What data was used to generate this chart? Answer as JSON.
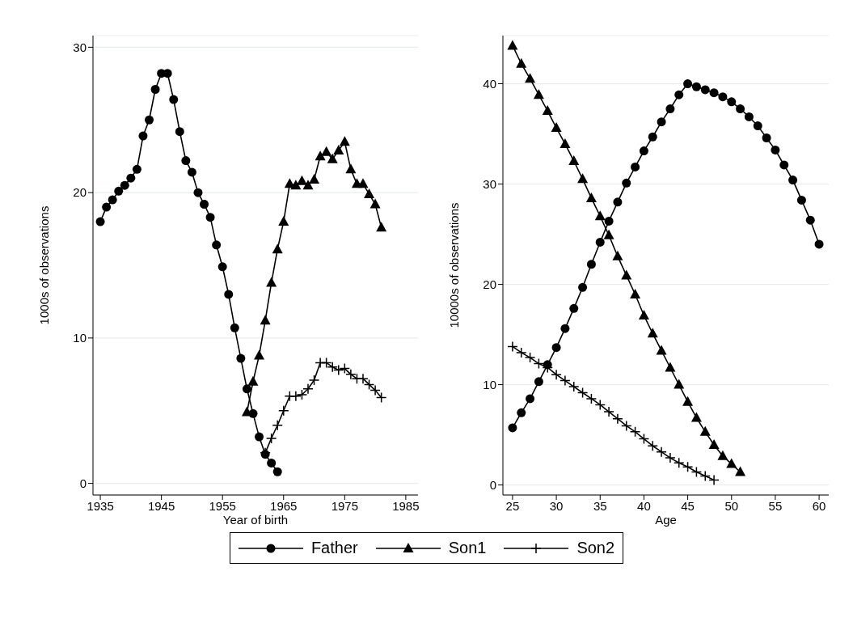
{
  "chart_data": [
    {
      "type": "line",
      "xlabel": "Year of birth",
      "ylabel": "1000s of observations",
      "xlim": [
        1933.8,
        1987
      ],
      "ylim": [
        -0.8,
        30.8
      ],
      "xticks": [
        1935,
        1945,
        1955,
        1965,
        1975,
        1985
      ],
      "yticks": [
        0,
        10,
        20,
        30
      ],
      "grid": "y",
      "legend": "bottom",
      "series": [
        {
          "name": "Father",
          "color": "#000000",
          "marker": "circle",
          "x": [
            1935,
            1936,
            1937,
            1938,
            1939,
            1940,
            1941,
            1942,
            1943,
            1944,
            1945,
            1946,
            1947,
            1948,
            1949,
            1950,
            1951,
            1952,
            1953,
            1954,
            1955,
            1956,
            1957,
            1958,
            1959,
            1960,
            1961,
            1962,
            1963,
            1964
          ],
          "values": [
            18.0,
            19.0,
            19.5,
            20.1,
            20.5,
            21.0,
            21.6,
            23.9,
            25.0,
            27.1,
            28.2,
            28.2,
            26.4,
            24.2,
            22.2,
            21.4,
            20.0,
            19.2,
            18.3,
            16.4,
            14.9,
            13.0,
            10.7,
            8.6,
            6.5,
            4.8,
            3.2,
            2.0,
            1.4,
            0.8
          ]
        },
        {
          "name": "Son1",
          "color": "#000000",
          "marker": "triangle",
          "x": [
            1959,
            1960,
            1961,
            1962,
            1963,
            1964,
            1965,
            1966,
            1967,
            1968,
            1969,
            1970,
            1971,
            1972,
            1973,
            1974,
            1975,
            1976,
            1977,
            1978,
            1979,
            1980,
            1981
          ],
          "values": [
            4.9,
            7.0,
            8.8,
            11.2,
            13.8,
            16.1,
            18.0,
            20.6,
            20.5,
            20.8,
            20.5,
            20.9,
            22.5,
            22.8,
            22.3,
            22.9,
            23.5,
            21.6,
            20.6,
            20.6,
            19.9,
            19.2,
            17.6
          ]
        },
        {
          "name": "Son2",
          "color": "#000000",
          "marker": "cross",
          "x": [
            1962,
            1963,
            1964,
            1965,
            1966,
            1967,
            1968,
            1969,
            1970,
            1971,
            1972,
            1973,
            1974,
            1975,
            1976,
            1977,
            1978,
            1979,
            1980,
            1981
          ],
          "values": [
            2.1,
            3.1,
            4.0,
            5.0,
            6.0,
            6.0,
            6.1,
            6.5,
            7.1,
            8.3,
            8.3,
            8.0,
            7.8,
            7.9,
            7.5,
            7.2,
            7.2,
            6.8,
            6.4,
            5.9
          ]
        }
      ]
    },
    {
      "type": "line",
      "xlabel": "Age",
      "ylabel": "10000s of observations",
      "xlim": [
        23.9,
        61.1
      ],
      "ylim": [
        -1,
        44.8
      ],
      "xticks": [
        25,
        30,
        35,
        40,
        45,
        50,
        55,
        60
      ],
      "yticks": [
        0,
        10,
        20,
        30,
        40
      ],
      "grid": "y",
      "legend": "bottom",
      "series": [
        {
          "name": "Father",
          "color": "#000000",
          "marker": "circle",
          "x": [
            25,
            26,
            27,
            28,
            29,
            30,
            31,
            32,
            33,
            34,
            35,
            36,
            37,
            38,
            39,
            40,
            41,
            42,
            43,
            44,
            45,
            46,
            47,
            48,
            49,
            50,
            51,
            52,
            53,
            54,
            55,
            56,
            57,
            58,
            59,
            60
          ],
          "values": [
            5.7,
            7.2,
            8.6,
            10.3,
            12.0,
            13.7,
            15.6,
            17.6,
            19.7,
            22.0,
            24.2,
            26.3,
            28.2,
            30.1,
            31.7,
            33.3,
            34.7,
            36.2,
            37.5,
            38.9,
            40.0,
            39.7,
            39.4,
            39.1,
            38.7,
            38.2,
            37.5,
            36.7,
            35.8,
            34.6,
            33.4,
            31.9,
            30.4,
            28.4,
            26.4,
            24.0
          ]
        },
        {
          "name": "Son1",
          "color": "#000000",
          "marker": "triangle",
          "x": [
            25,
            26,
            27,
            28,
            29,
            30,
            31,
            32,
            33,
            34,
            35,
            36,
            37,
            38,
            39,
            40,
            41,
            42,
            43,
            44,
            45,
            46,
            47,
            48,
            49,
            50,
            51
          ],
          "values": [
            43.8,
            42.0,
            40.5,
            38.9,
            37.3,
            35.6,
            34.0,
            32.3,
            30.5,
            28.6,
            26.8,
            24.9,
            22.8,
            20.9,
            19.0,
            16.9,
            15.1,
            13.4,
            11.7,
            10.0,
            8.3,
            6.7,
            5.3,
            4.0,
            2.9,
            2.1,
            1.3
          ]
        },
        {
          "name": "Son2",
          "color": "#000000",
          "marker": "cross",
          "x": [
            25,
            26,
            27,
            28,
            29,
            30,
            31,
            32,
            33,
            34,
            35,
            36,
            37,
            38,
            39,
            40,
            41,
            42,
            43,
            44,
            45,
            46,
            47,
            48
          ],
          "values": [
            13.8,
            13.2,
            12.7,
            12.1,
            11.7,
            11.0,
            10.4,
            9.8,
            9.2,
            8.6,
            8.0,
            7.3,
            6.6,
            5.9,
            5.3,
            4.6,
            3.9,
            3.3,
            2.7,
            2.2,
            1.8,
            1.3,
            0.9,
            0.5
          ]
        }
      ]
    }
  ]
}
